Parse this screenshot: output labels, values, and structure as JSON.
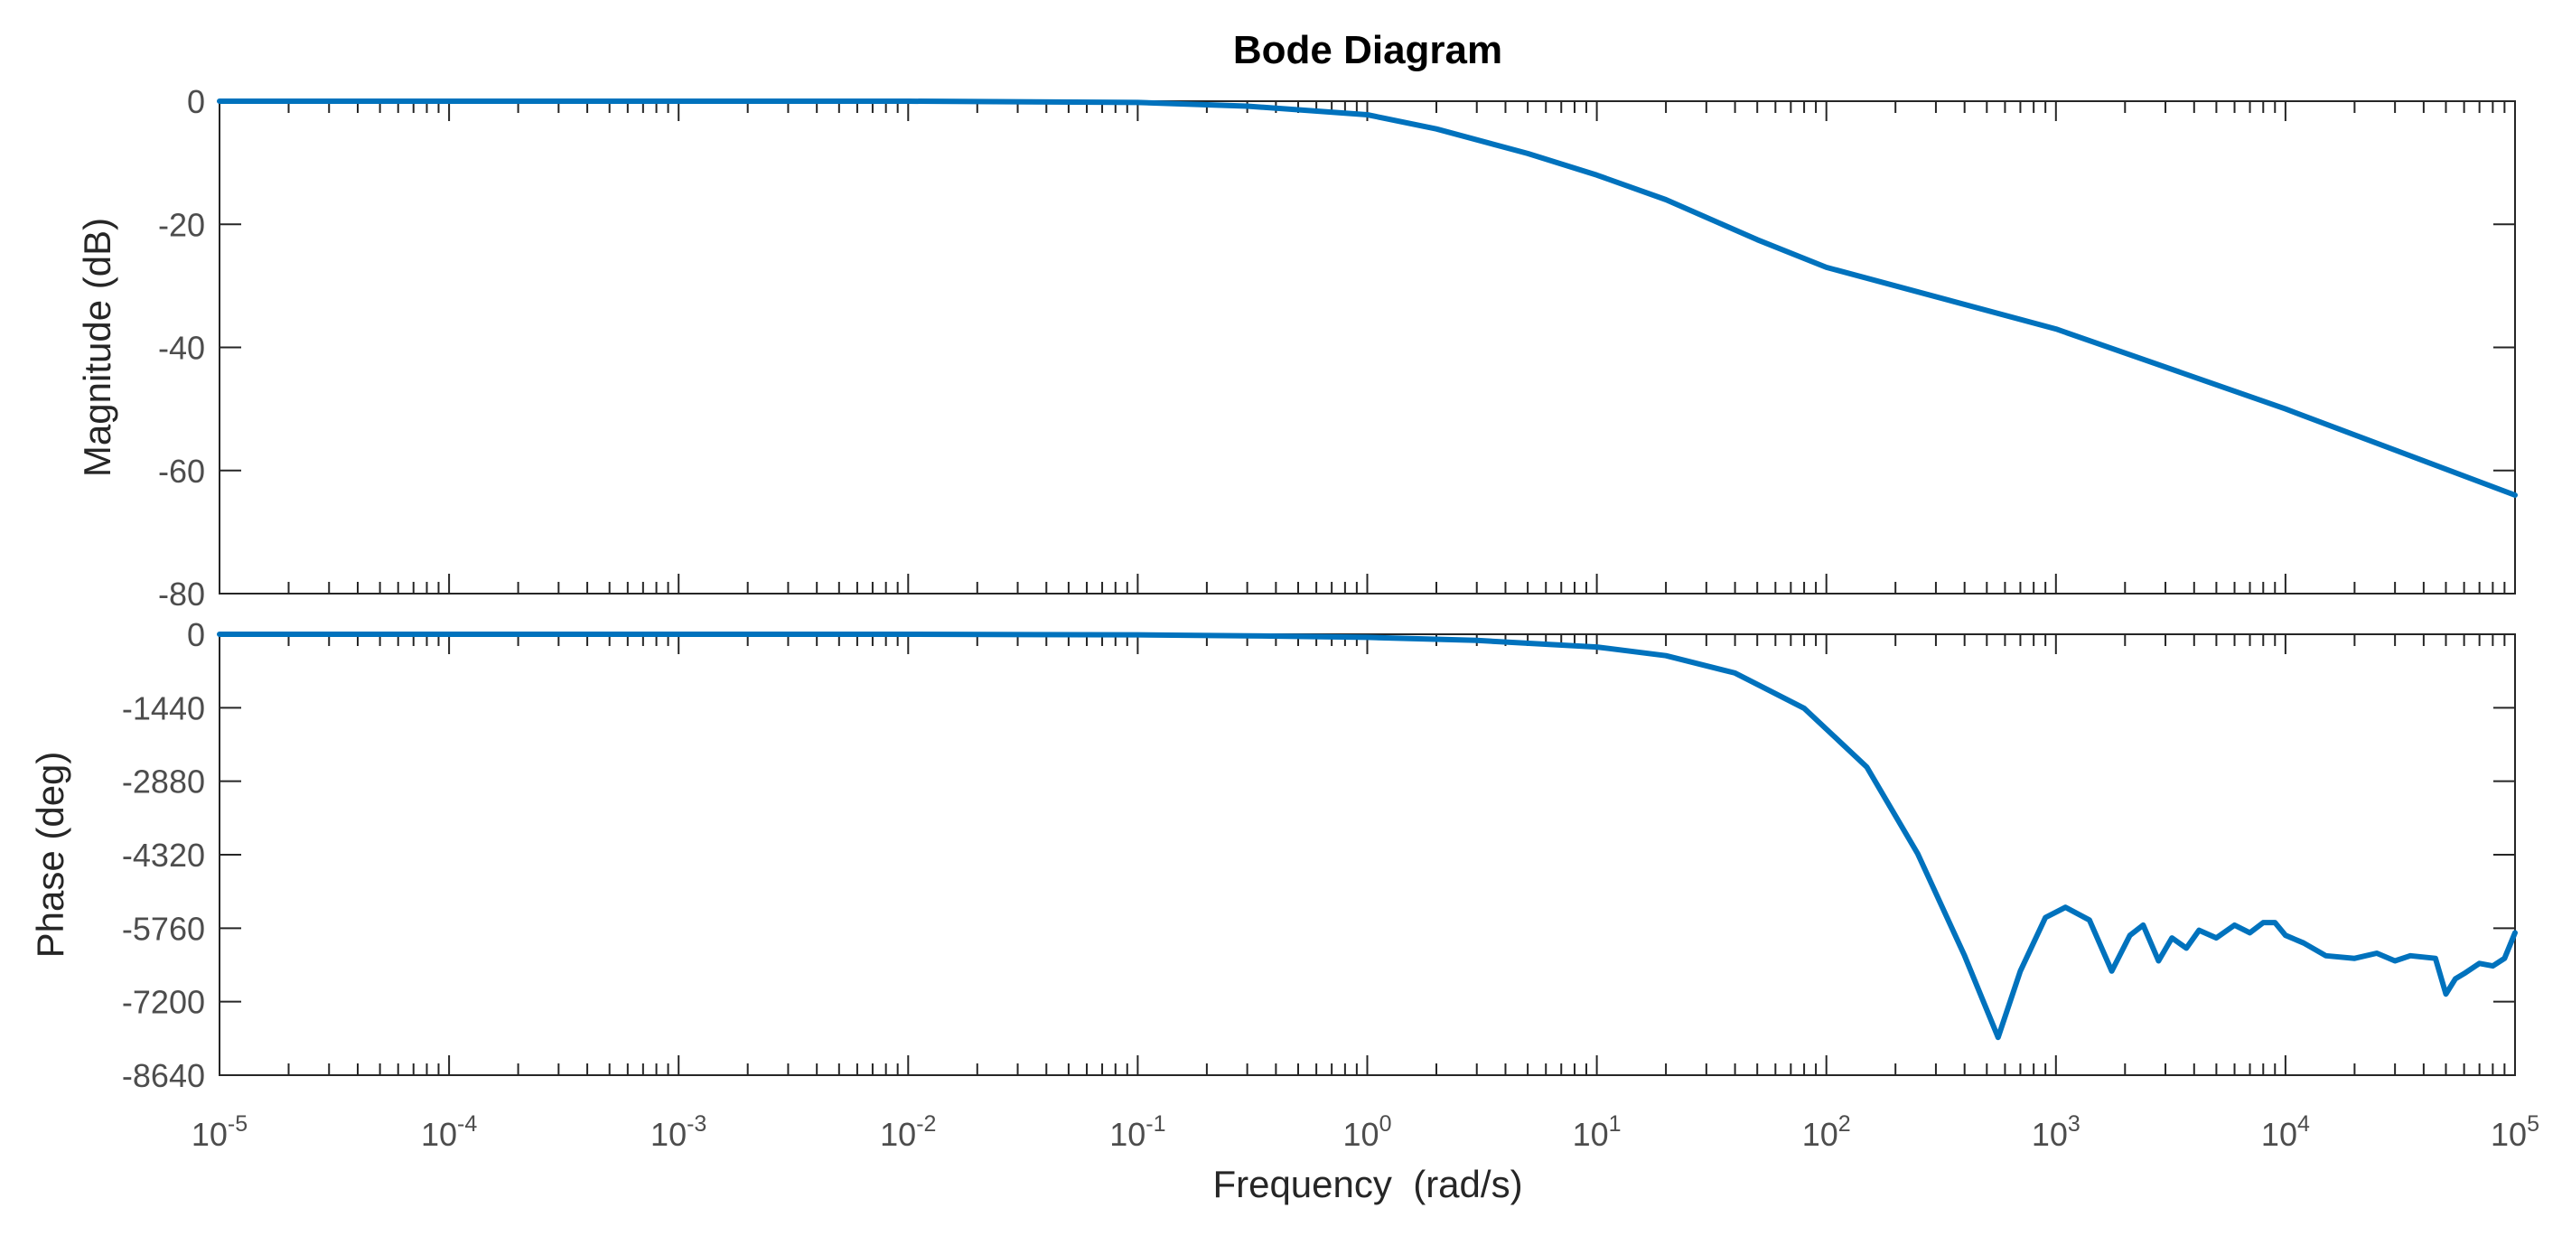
{
  "chart_data": {
    "type": "line",
    "title": "Bode Diagram",
    "xlabel": "Frequency  (rad/s)",
    "xscale": "log",
    "xlim": [
      1e-05,
      100000
    ],
    "x_tick_labels": [
      {
        "base": "10",
        "exp": "-5"
      },
      {
        "base": "10",
        "exp": "-4"
      },
      {
        "base": "10",
        "exp": "-3"
      },
      {
        "base": "10",
        "exp": "-2"
      },
      {
        "base": "10",
        "exp": "-1"
      },
      {
        "base": "10",
        "exp": "0"
      },
      {
        "base": "10",
        "exp": "1"
      },
      {
        "base": "10",
        "exp": "2"
      },
      {
        "base": "10",
        "exp": "3"
      },
      {
        "base": "10",
        "exp": "4"
      },
      {
        "base": "10",
        "exp": "5"
      }
    ],
    "line_color": "#0072bd",
    "grid": false,
    "panels": [
      {
        "name": "magnitude",
        "ylabel": "Magnitude (dB)",
        "ylim": [
          -80,
          0
        ],
        "y_ticks": [
          0,
          -20,
          -40,
          -60,
          -80
        ],
        "y_tick_labels": [
          "0",
          "-20",
          "-40",
          "-60",
          "-80"
        ],
        "series": [
          {
            "name": "Magnitude",
            "x": [
              1e-05,
              0.001,
              0.01,
              0.1,
              0.3,
              1,
              2,
              5,
              10,
              20,
              50,
              100,
              1000,
              10000,
              100000
            ],
            "y": [
              0,
              0,
              0,
              -0.2,
              -0.8,
              -2.2,
              -4.5,
              -8.5,
              -12,
              -16,
              -22.5,
              -27,
              -37,
              -50,
              -64
            ]
          }
        ]
      },
      {
        "name": "phase",
        "ylabel": "Phase (deg)",
        "ylim": [
          -8640,
          0
        ],
        "y_ticks": [
          0,
          -1440,
          -2880,
          -4320,
          -5760,
          -7200,
          -8640
        ],
        "y_tick_labels": [
          "0",
          "-1440",
          "-2880",
          "-4320",
          "-5760",
          "-7200",
          "-8640"
        ],
        "series": [
          {
            "name": "Phase",
            "x": [
              1e-05,
              0.01,
              0.1,
              0.3,
              1,
              3,
              10,
              20,
              40,
              80,
              150,
              250,
              400,
              560,
              700,
              900,
              1100,
              1400,
              1750,
              2100,
              2400,
              2800,
              3200,
              3700,
              4200,
              5000,
              6000,
              7000,
              8000,
              9000,
              10000,
              12000,
              15000,
              20000,
              25000,
              30000,
              35000,
              45000,
              50000,
              55000,
              60000,
              70000,
              80000,
              90000,
              100000
            ],
            "y": [
              0,
              0,
              -10,
              -30,
              -60,
              -120,
              -250,
              -420,
              -760,
              -1450,
              -2600,
              -4300,
              -6300,
              -7900,
              -6600,
              -5550,
              -5350,
              -5600,
              -6600,
              -5900,
              -5700,
              -6400,
              -5950,
              -6150,
              -5800,
              -5950,
              -5700,
              -5850,
              -5650,
              -5650,
              -5900,
              -6050,
              -6300,
              -6350,
              -6250,
              -6400,
              -6300,
              -6350,
              -7050,
              -6750,
              -6650,
              -6450,
              -6500,
              -6350,
              -5850
            ]
          }
        ]
      }
    ]
  }
}
